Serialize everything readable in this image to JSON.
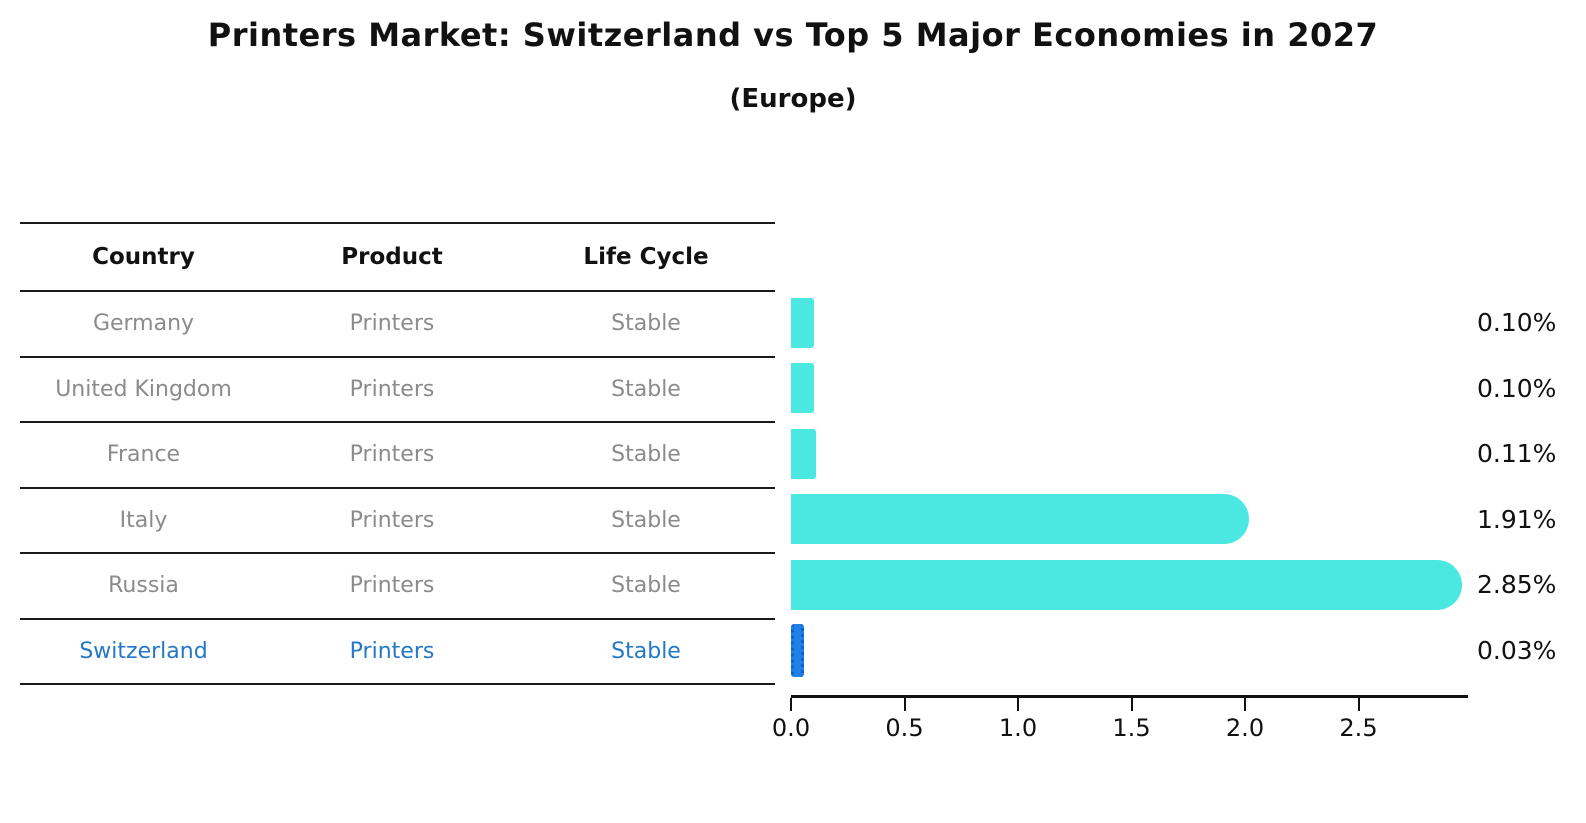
{
  "title": "Printers Market: Switzerland vs Top 5 Major Economies in 2027",
  "subtitle": "(Europe)",
  "table": {
    "headers": [
      "Country",
      "Product",
      "Life Cycle"
    ]
  },
  "rows": [
    {
      "country": "Germany",
      "product": "Printers",
      "life_cycle": "Stable",
      "label": "0.10%"
    },
    {
      "country": "United Kingdom",
      "product": "Printers",
      "life_cycle": "Stable",
      "label": "0.10%"
    },
    {
      "country": "France",
      "product": "Printers",
      "life_cycle": "Stable",
      "label": "0.11%"
    },
    {
      "country": "Italy",
      "product": "Printers",
      "life_cycle": "Stable",
      "label": "1.91%"
    },
    {
      "country": "Russia",
      "product": "Printers",
      "life_cycle": "Stable",
      "label": "2.85%"
    },
    {
      "country": "Switzerland",
      "product": "Printers",
      "life_cycle": "Stable",
      "label": "0.03%"
    }
  ],
  "chart_data": {
    "type": "bar",
    "orientation": "horizontal",
    "title": "Printers Market: Switzerland vs Top 5 Major Economies in 2027",
    "subtitle": "(Europe)",
    "categories": [
      "Germany",
      "United Kingdom",
      "France",
      "Italy",
      "Russia",
      "Switzerland"
    ],
    "values": [
      0.1,
      0.1,
      0.11,
      1.91,
      2.85,
      0.03
    ],
    "data_labels": [
      "0.10%",
      "0.10%",
      "0.11%",
      "1.91%",
      "2.85%",
      "0.03%"
    ],
    "xlabel": "",
    "ylabel": "",
    "xlim": [
      0.0,
      2.97
    ],
    "tick_values": [
      0.0,
      0.5,
      1.0,
      1.5,
      2.0,
      2.5
    ],
    "xtick_labels": [
      "0.0",
      "0.5",
      "1.0",
      "1.5",
      "2.0",
      "2.5"
    ],
    "grid": false,
    "legend": false,
    "bar_color": "#4be8e2",
    "highlight_color": "#1f80e8",
    "highlight_text_color": "#2478c8",
    "highlight_index": 5
  }
}
